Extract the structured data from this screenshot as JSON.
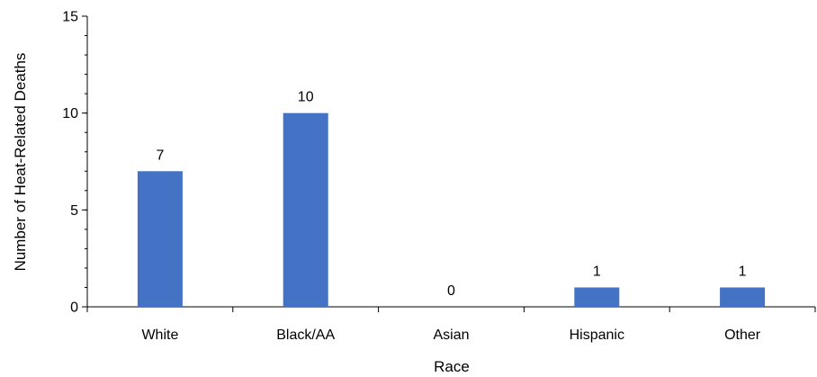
{
  "chart_data": {
    "type": "bar",
    "categories": [
      "White",
      "Black/AA",
      "Asian",
      "Hispanic",
      "Other"
    ],
    "values": [
      7,
      10,
      0,
      1,
      1
    ],
    "data_labels": [
      "7",
      "10",
      "0",
      "1",
      "1"
    ],
    "xlabel": "Race",
    "ylabel": "Number of Heat-Related Deaths",
    "ylim": [
      0,
      15
    ],
    "major_ticks": [
      0,
      5,
      10,
      15
    ],
    "tick_labels": [
      "0",
      "5",
      "10",
      "15"
    ],
    "minor_tick_step": 1,
    "grid": false,
    "legend": "none",
    "bar_color": "#4472C4"
  }
}
